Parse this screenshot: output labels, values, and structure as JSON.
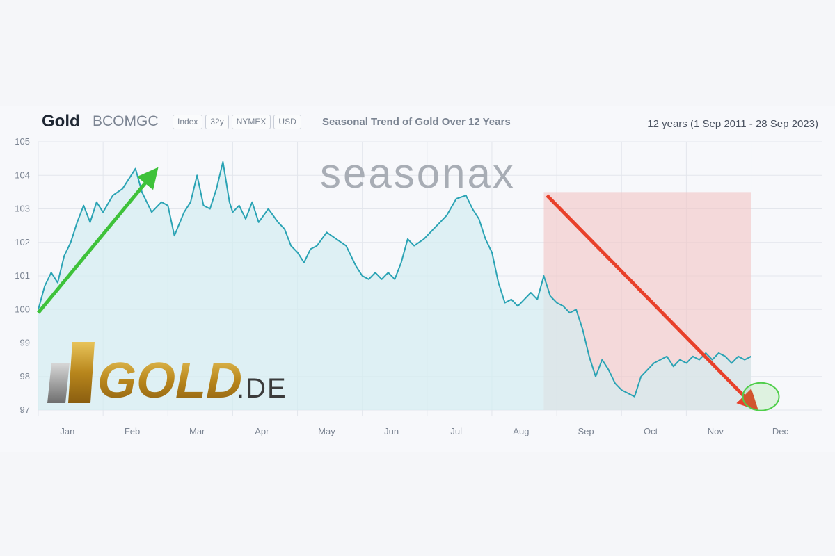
{
  "header": {
    "title": "Gold",
    "ticker": "BCOMGC",
    "badges": [
      "Index",
      "32y",
      "NYMEX",
      "USD"
    ],
    "subtitle": "Seasonal Trend of Gold Over 12 Years",
    "range": "12 years (1 Sep 2011 - 28 Sep 2023)"
  },
  "watermark": "seasonax",
  "logo": {
    "main": "GOLD",
    "suffix": ".DE"
  },
  "colors": {
    "line": "#2aa3b4",
    "area": "#d3ecf1",
    "highlight": "#f2c4c4",
    "up_arrow": "#3ec23a",
    "down_arrow": "#e8402a",
    "circle": "#4fce4a"
  },
  "chart_data": {
    "type": "line",
    "title": "Seasonal Trend of Gold Over 12 Years",
    "xlabel": "",
    "ylabel": "",
    "ylim": [
      97,
      105
    ],
    "yticks": [
      97,
      98,
      99,
      100,
      101,
      102,
      103,
      104,
      105
    ],
    "months": [
      "Jan",
      "Feb",
      "Mar",
      "Apr",
      "May",
      "Jun",
      "Jul",
      "Aug",
      "Sep",
      "Oct",
      "Nov",
      "Dec"
    ],
    "grid": true,
    "series": [
      {
        "name": "Gold",
        "x": [
          0,
          0.1,
          0.2,
          0.3,
          0.4,
          0.5,
          0.6,
          0.7,
          0.8,
          0.9,
          1.0,
          1.15,
          1.3,
          1.4,
          1.5,
          1.6,
          1.75,
          1.9,
          2.0,
          2.1,
          2.25,
          2.35,
          2.45,
          2.55,
          2.65,
          2.75,
          2.85,
          2.95,
          3.0,
          3.1,
          3.2,
          3.3,
          3.4,
          3.55,
          3.7,
          3.8,
          3.9,
          4.0,
          4.1,
          4.2,
          4.3,
          4.45,
          4.6,
          4.75,
          4.9,
          5.0,
          5.1,
          5.2,
          5.3,
          5.4,
          5.5,
          5.6,
          5.7,
          5.8,
          5.95,
          6.1,
          6.2,
          6.3,
          6.45,
          6.6,
          6.7,
          6.8,
          6.9,
          7.0,
          7.1,
          7.2,
          7.3,
          7.4,
          7.5,
          7.6,
          7.7,
          7.8,
          7.9,
          8.0,
          8.1,
          8.2,
          8.3,
          8.4,
          8.5,
          8.6,
          8.7,
          8.8,
          8.9,
          9.0,
          9.1,
          9.2,
          9.3,
          9.4,
          9.5,
          9.6,
          9.7,
          9.8,
          9.9,
          10.0,
          10.1,
          10.2,
          10.3,
          10.4,
          10.5,
          10.6,
          10.7,
          10.8,
          10.9,
          11.0
        ],
        "y": [
          100.0,
          100.7,
          101.1,
          100.8,
          101.6,
          102.0,
          102.6,
          103.1,
          102.6,
          103.2,
          102.9,
          103.4,
          103.6,
          103.9,
          104.2,
          103.5,
          102.9,
          103.2,
          103.1,
          102.2,
          102.9,
          103.2,
          104.0,
          103.1,
          103.0,
          103.6,
          104.4,
          103.2,
          102.9,
          103.1,
          102.7,
          103.2,
          102.6,
          103.0,
          102.6,
          102.4,
          101.9,
          101.7,
          101.4,
          101.8,
          101.9,
          102.3,
          102.1,
          101.9,
          101.3,
          101.0,
          100.9,
          101.1,
          100.9,
          101.1,
          100.9,
          101.4,
          102.1,
          101.9,
          102.1,
          102.4,
          102.6,
          102.8,
          103.3,
          103.4,
          103.0,
          102.7,
          102.1,
          101.7,
          100.8,
          100.2,
          100.3,
          100.1,
          100.3,
          100.5,
          100.3,
          101.0,
          100.4,
          100.2,
          100.1,
          99.9,
          100.0,
          99.4,
          98.6,
          98.0,
          98.5,
          98.2,
          97.8,
          97.6,
          97.5,
          97.4,
          98.0,
          98.2,
          98.4,
          98.5,
          98.6,
          98.3,
          98.5,
          98.4,
          98.6,
          98.5,
          98.7,
          98.5,
          98.7,
          98.6,
          98.4,
          98.6,
          98.5,
          98.6
        ]
      }
    ],
    "annotations": [
      {
        "type": "arrow-up",
        "from": [
          0.0,
          99.9
        ],
        "to": [
          1.75,
          104.0
        ]
      },
      {
        "type": "highlight-region",
        "x_range": [
          7.8,
          11.0
        ],
        "y_range": [
          97.0,
          103.5
        ]
      },
      {
        "type": "arrow-down",
        "from": [
          7.85,
          103.4
        ],
        "to": [
          11.0,
          97.2
        ]
      },
      {
        "type": "circle",
        "center": [
          11.15,
          97.4
        ]
      }
    ]
  }
}
